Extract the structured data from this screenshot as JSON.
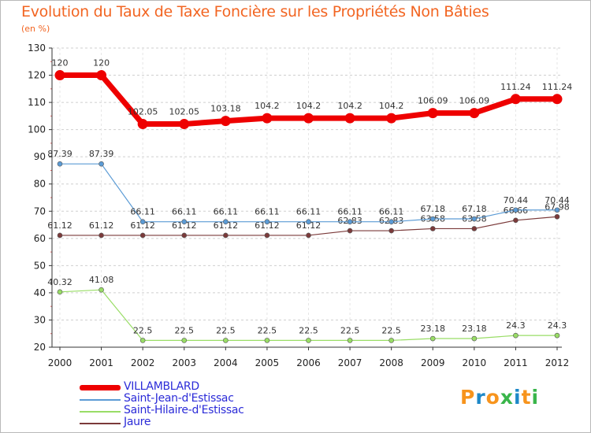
{
  "title": "Evolution du Taux de Taxe Foncière sur les Propriétés Non Bâties",
  "unit": "(en %)",
  "logo": {
    "text": "Proxiti",
    "letters": [
      "P",
      "r",
      "o",
      "x",
      "i",
      "t",
      "i"
    ],
    "colors": [
      "#f7941d",
      "#1e88c8",
      "#f7941d",
      "#39b54a",
      "#1e88c8",
      "#f7941d",
      "#39b54a"
    ]
  },
  "chart_data": {
    "type": "line",
    "title": "Evolution du Taux de Taxe Foncière sur les Propriétés Non Bâties",
    "ylabel": "(en %)",
    "xlabel": "",
    "ylim": [
      20,
      130
    ],
    "yticks": [
      20,
      30,
      40,
      50,
      60,
      70,
      80,
      90,
      100,
      110,
      120,
      130
    ],
    "x": [
      "2000",
      "2001",
      "2002",
      "2003",
      "2004",
      "2005",
      "2006",
      "2007",
      "2008",
      "2009",
      "2010",
      "2011",
      "2012"
    ],
    "grid": "horizontal dashed",
    "legend": "bottom-left",
    "series": [
      {
        "name": "VILLAMBLARD",
        "color": "#ee0000",
        "lineWidth": 7,
        "markerR": 6,
        "values": [
          120,
          120,
          102.05,
          102.05,
          103.18,
          104.2,
          104.2,
          104.2,
          104.2,
          106.09,
          106.09,
          111.24,
          111.24
        ],
        "labels": [
          "120",
          "120",
          "102.05",
          "102.05",
          "103.18",
          "104.2",
          "104.2",
          "104.2",
          "104.2",
          "106.09",
          "106.09",
          "111.24",
          "111.24"
        ]
      },
      {
        "name": "Saint-Jean-d'Estissac",
        "color": "#5b9bd5",
        "lineWidth": 1.2,
        "markerR": 3,
        "values": [
          87.39,
          87.39,
          66.11,
          66.11,
          66.11,
          66.11,
          66.11,
          66.11,
          66.11,
          67.18,
          67.18,
          70.44,
          70.44
        ],
        "labels": [
          "87.39",
          "87.39",
          "66.11",
          "66.11",
          "66.11",
          "66.11",
          "66.11",
          "66.11",
          "66.11",
          "67.18",
          "67.18",
          "70.44",
          "70.44"
        ]
      },
      {
        "name": "Saint-Hilaire-d'Estissac",
        "color": "#99dd66",
        "lineWidth": 1.2,
        "markerR": 3,
        "values": [
          40.32,
          41.08,
          22.5,
          22.5,
          22.5,
          22.5,
          22.5,
          22.5,
          22.5,
          23.18,
          23.18,
          24.3,
          24.3
        ],
        "labels": [
          "40.32",
          "41.08",
          "22.5",
          "22.5",
          "22.5",
          "22.5",
          "22.5",
          "22.5",
          "22.5",
          "23.18",
          "23.18",
          "24.3",
          "24.3"
        ]
      },
      {
        "name": "Jaure",
        "color": "#7b3a3a",
        "lineWidth": 1.2,
        "markerR": 3,
        "values": [
          61.12,
          61.12,
          61.12,
          61.12,
          61.12,
          61.12,
          61.12,
          62.83,
          62.83,
          63.58,
          63.58,
          66.66,
          67.98
        ],
        "labels": [
          "61.12",
          "61.12",
          "61.12",
          "61.12",
          "61.12",
          "61.12",
          "61.12",
          "62.83",
          "62.83",
          "63.58",
          "63.58",
          "66.66",
          "67.98"
        ]
      }
    ]
  }
}
